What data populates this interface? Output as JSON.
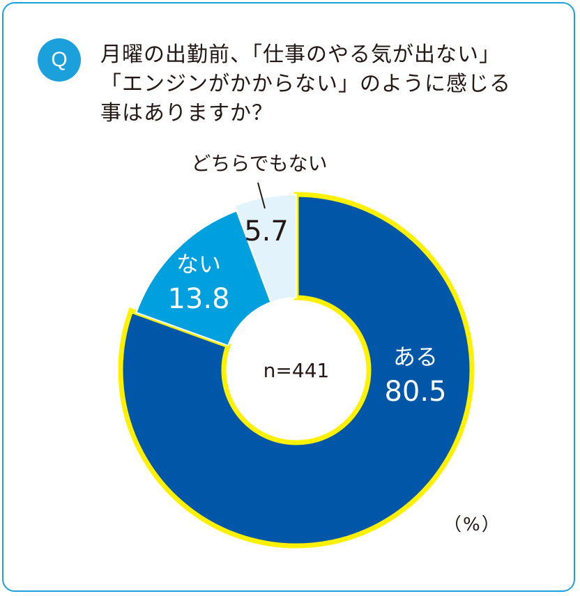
{
  "question": {
    "badge": "Q",
    "lines": [
      "月曜の出勤前、「仕事のやる気が出ない」",
      "「エンジンがかからない」のように感じる",
      "事はありますか？"
    ]
  },
  "colors": {
    "accent": "#1ba0dc",
    "outline": "#fff100",
    "text_dark": "#231815"
  },
  "chart_data": {
    "type": "pie",
    "variant": "donut",
    "slices": [
      {
        "label": "ある",
        "value": 80.5,
        "color": "#0057a8",
        "text_color": "#ffffff"
      },
      {
        "label": "ない",
        "value": 13.8,
        "color": "#00a0de",
        "text_color": "#ffffff"
      },
      {
        "label": "どちらでもない",
        "value": 5.7,
        "color": "#e2f3fc",
        "text_color": "#231815"
      }
    ],
    "center_label": "n=441",
    "unit": "（%）",
    "start": "top",
    "direction": "clockwise"
  }
}
